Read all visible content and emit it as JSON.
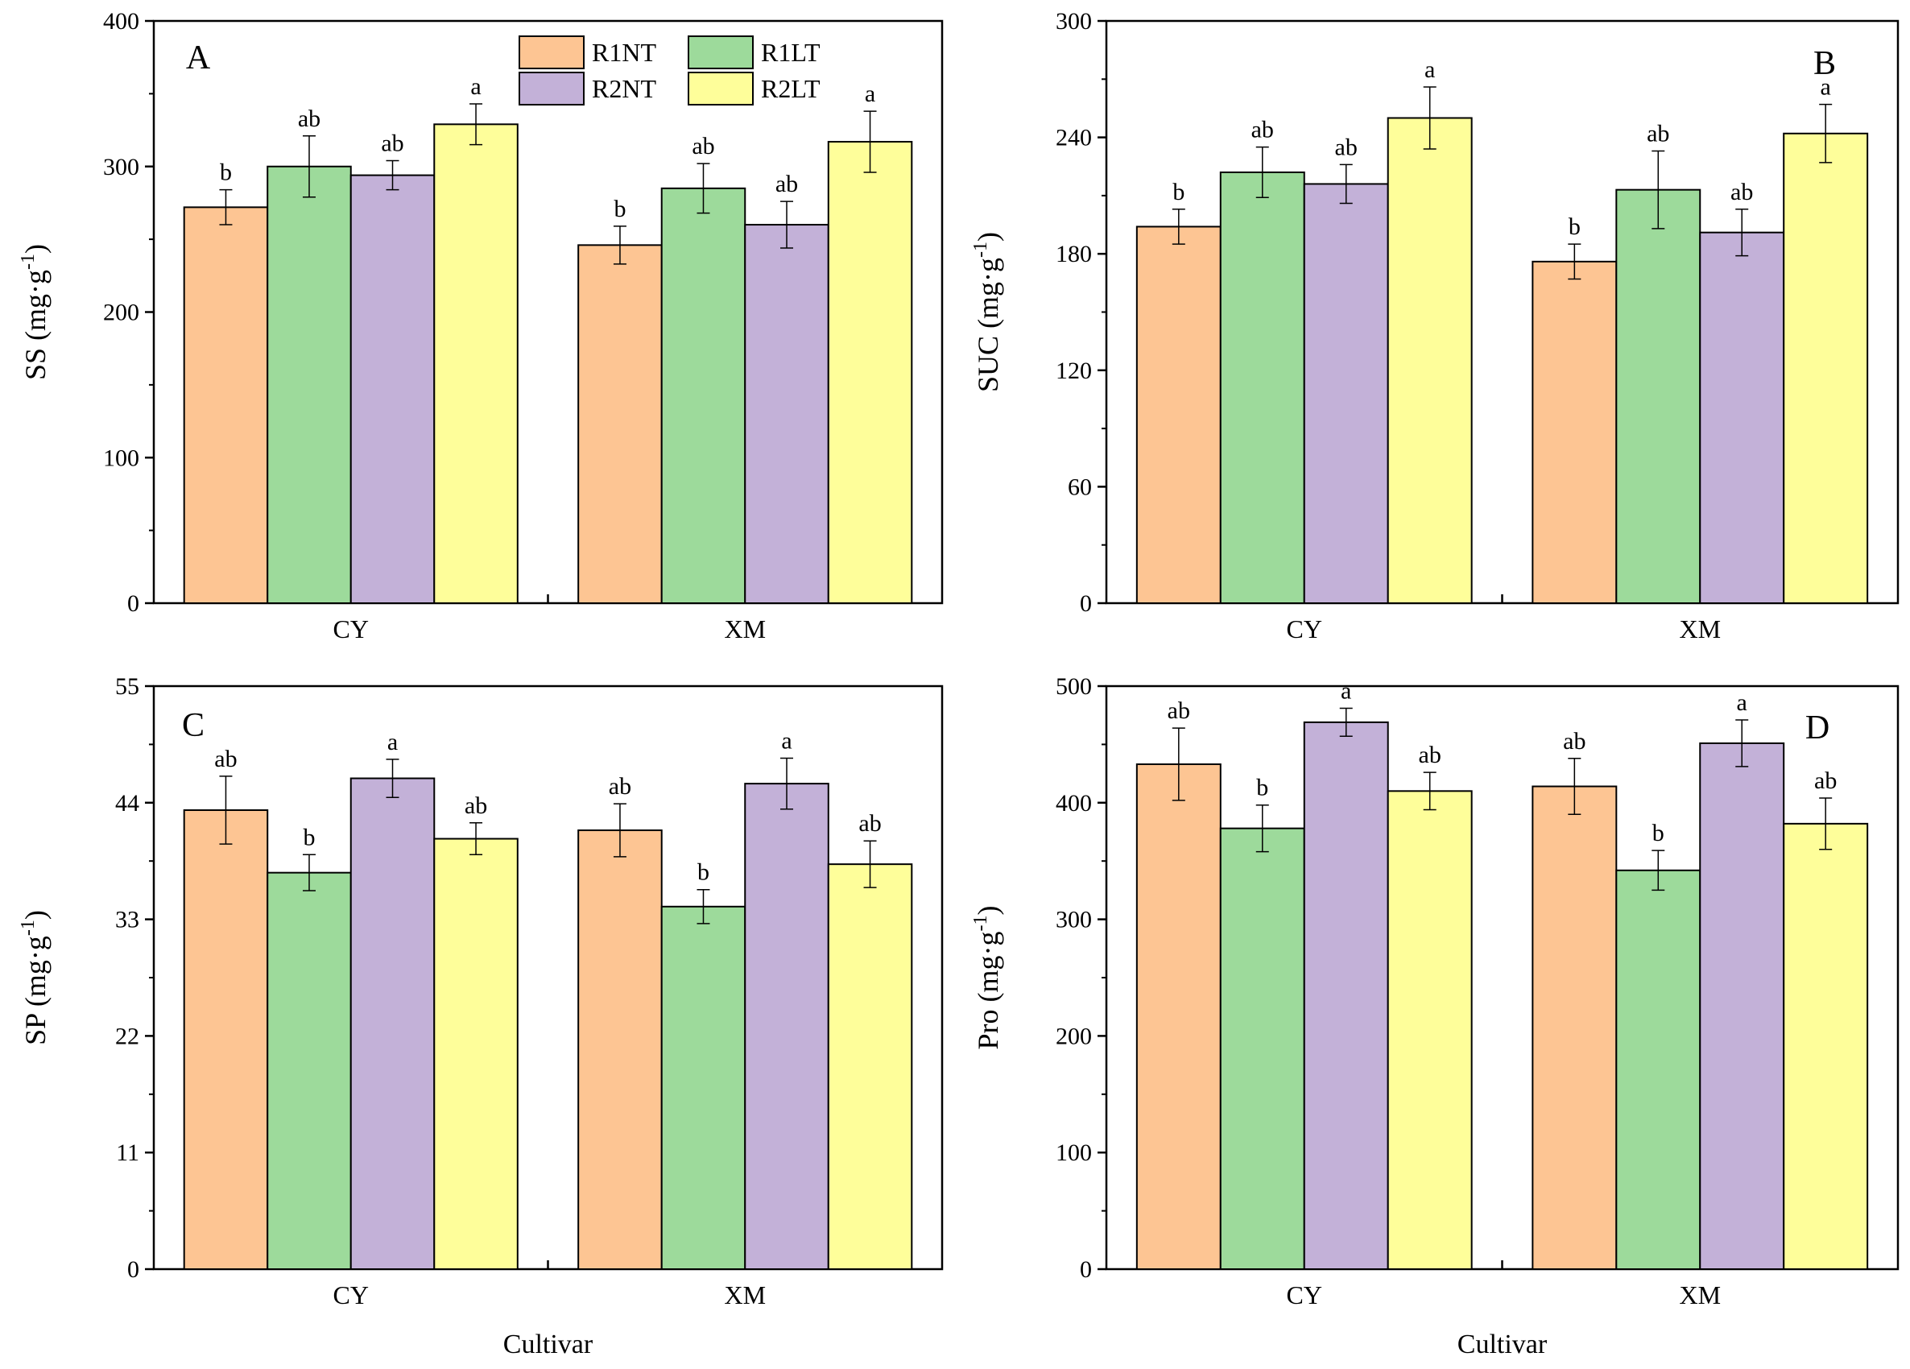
{
  "legend": [
    {
      "name": "R1NT",
      "color": "#FDC593"
    },
    {
      "name": "R1LT",
      "color": "#9DDA9B"
    },
    {
      "name": "R2NT",
      "color": "#C3B1D8"
    },
    {
      "name": "R2LT",
      "color": "#FEFE9A"
    }
  ],
  "chart_data": [
    {
      "type": "bar",
      "panel": "A",
      "ylabel": "SS (mg·g",
      "ylabel_sup": "-1",
      "ylabel_close": ")",
      "xlabel": "",
      "ylim": [
        0,
        400
      ],
      "yticks": [
        0,
        100,
        200,
        300,
        400
      ],
      "categories": [
        "CY",
        "XM"
      ],
      "series": [
        {
          "name": "R1NT",
          "values": [
            272,
            246
          ],
          "errors": [
            12,
            13
          ],
          "sig": [
            "b",
            "b"
          ]
        },
        {
          "name": "R1LT",
          "values": [
            300,
            285
          ],
          "errors": [
            21,
            17
          ],
          "sig": [
            "ab",
            "ab"
          ]
        },
        {
          "name": "R2NT",
          "values": [
            294,
            260
          ],
          "errors": [
            10,
            16
          ],
          "sig": [
            "ab",
            "ab"
          ]
        },
        {
          "name": "R2LT",
          "values": [
            329,
            317
          ],
          "errors": [
            14,
            21
          ],
          "sig": [
            "a",
            "a"
          ]
        }
      ]
    },
    {
      "type": "bar",
      "panel": "B",
      "ylabel": "SUC (mg·g",
      "ylabel_sup": "-1",
      "ylabel_close": ")",
      "xlabel": "",
      "ylim": [
        0,
        300
      ],
      "yticks": [
        0,
        60,
        120,
        180,
        240,
        300
      ],
      "categories": [
        "CY",
        "XM"
      ],
      "series": [
        {
          "name": "R1NT",
          "values": [
            194,
            176
          ],
          "errors": [
            9,
            9
          ],
          "sig": [
            "b",
            "b"
          ]
        },
        {
          "name": "R1LT",
          "values": [
            222,
            213
          ],
          "errors": [
            13,
            20
          ],
          "sig": [
            "ab",
            "ab"
          ]
        },
        {
          "name": "R2NT",
          "values": [
            216,
            191
          ],
          "errors": [
            10,
            12
          ],
          "sig": [
            "ab",
            "ab"
          ]
        },
        {
          "name": "R2LT",
          "values": [
            250,
            242
          ],
          "errors": [
            16,
            15
          ],
          "sig": [
            "a",
            "a"
          ]
        }
      ]
    },
    {
      "type": "bar",
      "panel": "C",
      "ylabel": "SP (mg·g",
      "ylabel_sup": "-1",
      "ylabel_close": ")",
      "xlabel": "Cultivar",
      "ylim": [
        0,
        55
      ],
      "yticks": [
        0,
        11,
        22,
        33,
        44,
        55
      ],
      "categories": [
        "CY",
        "XM"
      ],
      "series": [
        {
          "name": "R1NT",
          "values": [
            43.3,
            41.4
          ],
          "errors": [
            3.2,
            2.5
          ],
          "sig": [
            "ab",
            "ab"
          ]
        },
        {
          "name": "R1LT",
          "values": [
            37.4,
            34.2
          ],
          "errors": [
            1.7,
            1.6
          ],
          "sig": [
            "b",
            "b"
          ]
        },
        {
          "name": "R2NT",
          "values": [
            46.3,
            45.8
          ],
          "errors": [
            1.8,
            2.4
          ],
          "sig": [
            "a",
            "a"
          ]
        },
        {
          "name": "R2LT",
          "values": [
            40.6,
            38.2
          ],
          "errors": [
            1.5,
            2.2
          ],
          "sig": [
            "ab",
            "ab"
          ]
        }
      ]
    },
    {
      "type": "bar",
      "panel": "D",
      "ylabel": "Pro (mg·g",
      "ylabel_sup": "-1",
      "ylabel_close": ")",
      "xlabel": "Cultivar",
      "ylim": [
        0,
        500
      ],
      "yticks": [
        0,
        100,
        200,
        300,
        400,
        500
      ],
      "categories": [
        "CY",
        "XM"
      ],
      "series": [
        {
          "name": "R1NT",
          "values": [
            433,
            414
          ],
          "errors": [
            31,
            24
          ],
          "sig": [
            "ab",
            "ab"
          ]
        },
        {
          "name": "R1LT",
          "values": [
            378,
            342
          ],
          "errors": [
            20,
            17
          ],
          "sig": [
            "b",
            "b"
          ]
        },
        {
          "name": "R2NT",
          "values": [
            469,
            451
          ],
          "errors": [
            12,
            20
          ],
          "sig": [
            "a",
            "a"
          ]
        },
        {
          "name": "R2LT",
          "values": [
            410,
            382
          ],
          "errors": [
            16,
            22
          ],
          "sig": [
            "ab",
            "ab"
          ]
        }
      ]
    }
  ]
}
